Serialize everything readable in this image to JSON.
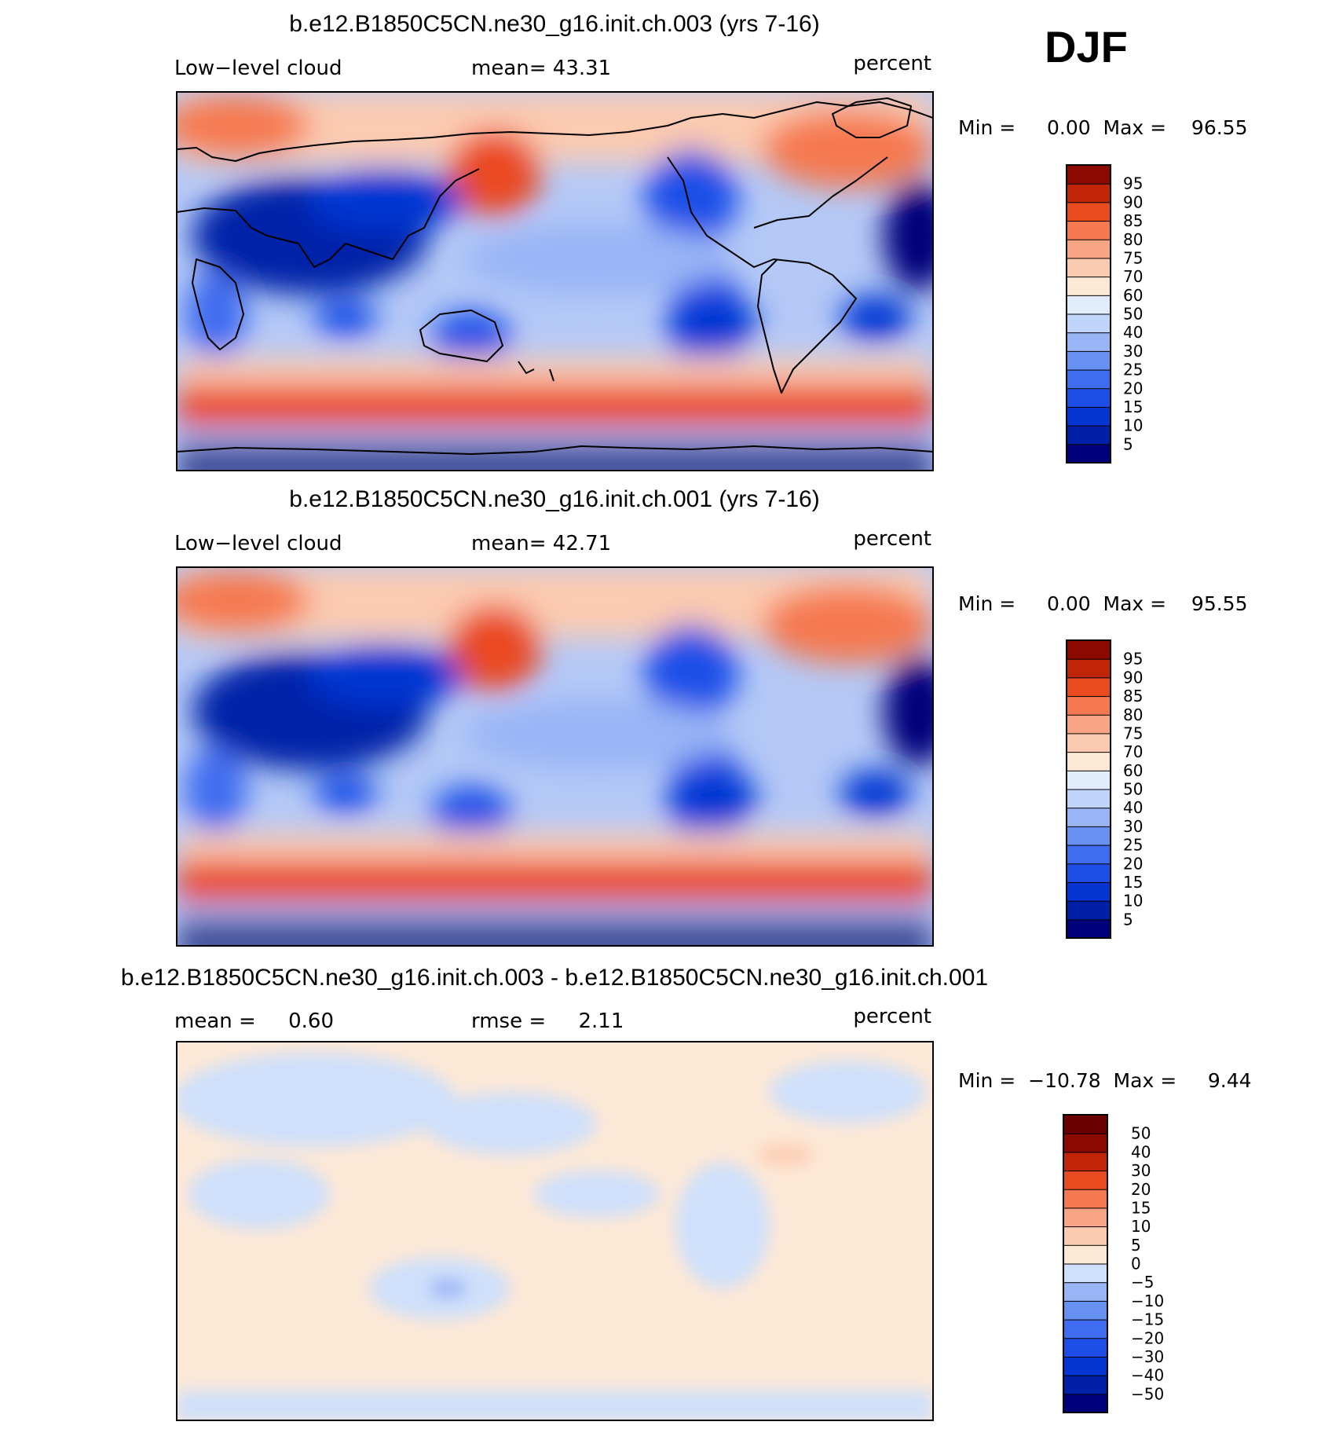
{
  "season": "DJF",
  "chart_data": [
    {
      "type": "heatmap",
      "title": "b.e12.B1850C5CN.ne30_g16.init.ch.003 (yrs 7-16)",
      "left_label": "Low−level cloud",
      "center_label": "mean=   43.31",
      "units": "percent",
      "mean": 43.31,
      "min": 0.0,
      "max": 96.55,
      "min_max_text": "Min =     0.00  Max =    96.55",
      "colorbar": {
        "levels": [
          "5",
          "10",
          "15",
          "20",
          "25",
          "30",
          "40",
          "50",
          "60",
          "70",
          "75",
          "80",
          "85",
          "90",
          "95"
        ],
        "colors": [
          "#00007a",
          "#0020a8",
          "#0535d2",
          "#1d4fe8",
          "#3f6cf0",
          "#6790f3",
          "#9ab5f6",
          "#c1d5fa",
          "#e1ecfd",
          "#fde8d6",
          "#fccab0",
          "#f9a484",
          "#f57950",
          "#ea4a20",
          "#c02508",
          "#8a0a00"
        ]
      }
    },
    {
      "type": "heatmap",
      "title": "b.e12.B1850C5CN.ne30_g16.init.ch.001 (yrs 7-16)",
      "left_label": "Low−level cloud",
      "center_label": "mean=   42.71",
      "units": "percent",
      "mean": 42.71,
      "min": 0.0,
      "max": 95.55,
      "min_max_text": "Min =     0.00  Max =    95.55",
      "colorbar": {
        "levels": [
          "5",
          "10",
          "15",
          "20",
          "25",
          "30",
          "40",
          "50",
          "60",
          "70",
          "75",
          "80",
          "85",
          "90",
          "95"
        ],
        "colors": [
          "#00007a",
          "#0020a8",
          "#0535d2",
          "#1d4fe8",
          "#3f6cf0",
          "#6790f3",
          "#9ab5f6",
          "#c1d5fa",
          "#e1ecfd",
          "#fde8d6",
          "#fccab0",
          "#f9a484",
          "#f57950",
          "#ea4a20",
          "#c02508",
          "#8a0a00"
        ]
      }
    },
    {
      "type": "heatmap",
      "title": "b.e12.B1850C5CN.ne30_g16.init.ch.003 - b.e12.B1850C5CN.ne30_g16.init.ch.001",
      "left_label": "mean =     0.60",
      "center_label": "rmse =     2.11",
      "units": "percent",
      "mean": 0.6,
      "rmse": 2.11,
      "min": -10.78,
      "max": 9.44,
      "min_max_text": "Min =  −10.78  Max =     9.44",
      "colorbar": {
        "levels": [
          "−50",
          "−40",
          "−30",
          "−20",
          "−15",
          "−10",
          "−5",
          "0",
          "5",
          "10",
          "15",
          "20",
          "30",
          "40",
          "50"
        ],
        "colors": [
          "#00007a",
          "#0020a8",
          "#0535d2",
          "#1d4fe8",
          "#3f6cf0",
          "#6790f3",
          "#9ab5f6",
          "#cfe0fb",
          "#fde8d6",
          "#fccab0",
          "#f9a484",
          "#f57950",
          "#ea4a20",
          "#c02508",
          "#8a0a00",
          "#6a0000"
        ]
      }
    }
  ]
}
